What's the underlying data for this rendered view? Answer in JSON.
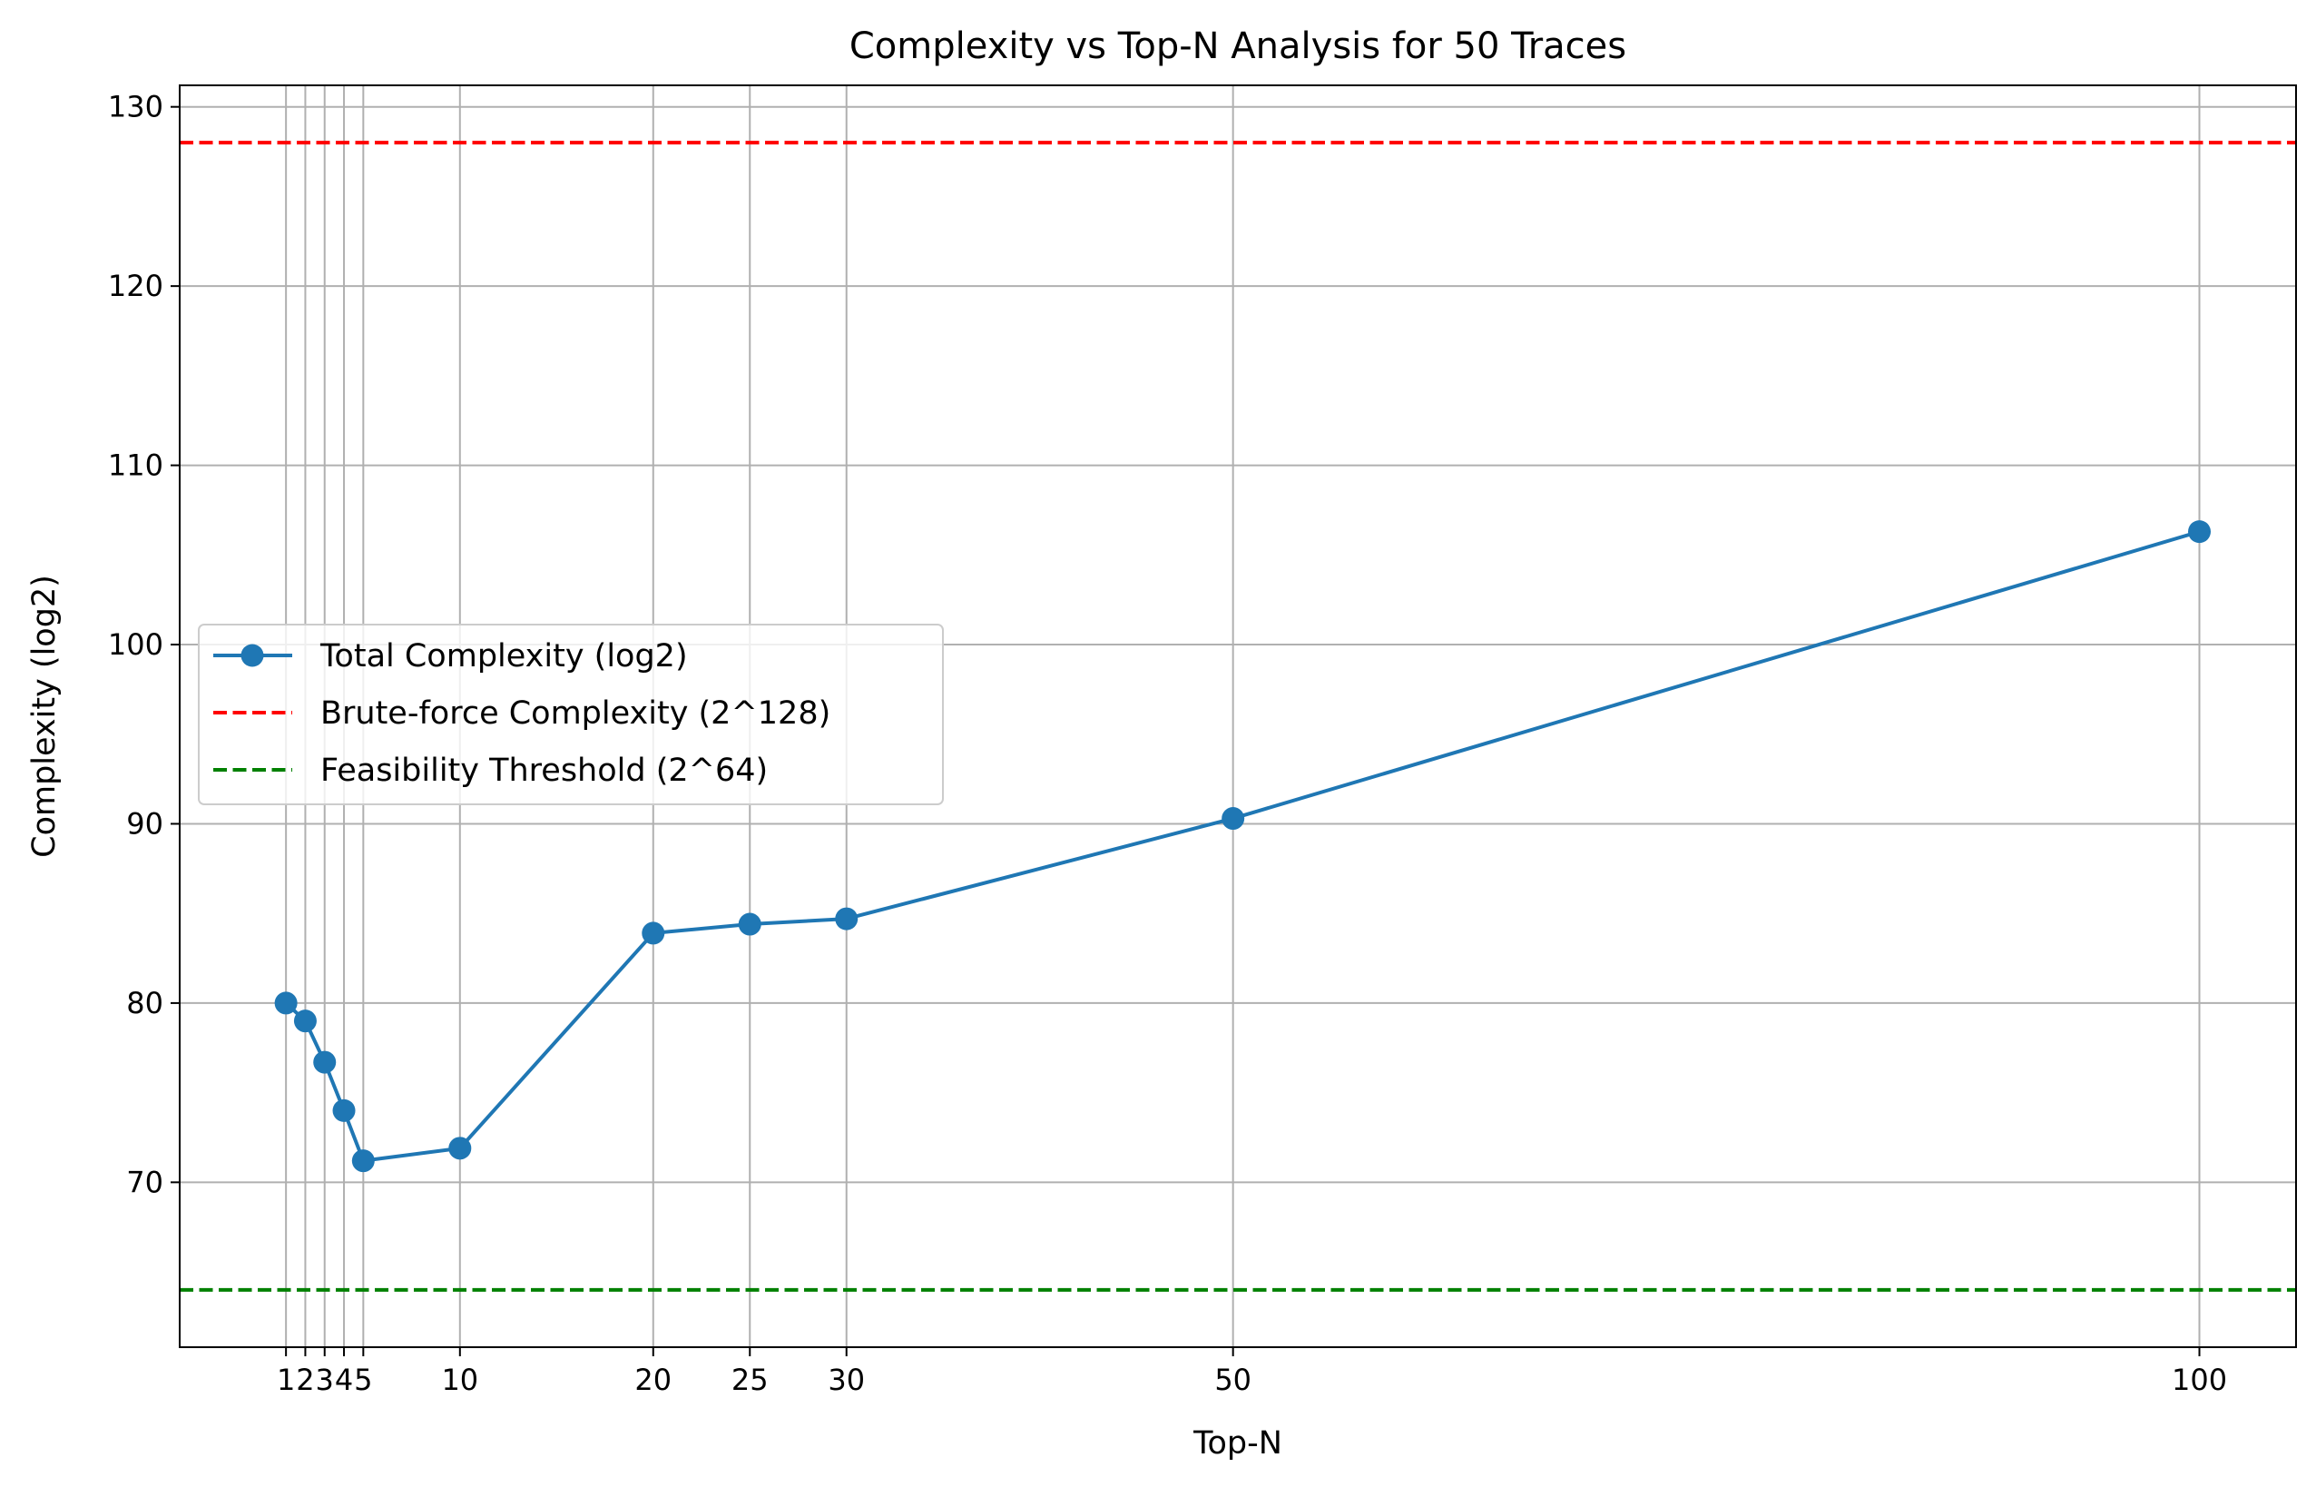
{
  "chart_data": {
    "type": "line",
    "title": "Complexity vs Top-N Analysis for 50 Traces",
    "xlabel": "Top-N",
    "ylabel": "Complexity (log2)",
    "x": [
      1,
      2,
      3,
      4,
      5,
      10,
      20,
      25,
      30,
      50,
      100
    ],
    "x_ticks": [
      "1",
      "2",
      "3",
      "4",
      "5",
      "10",
      "20",
      "25",
      "30",
      "50",
      "100"
    ],
    "xlim": [
      -4.5,
      105
    ],
    "ylim": [
      60.8,
      131.2
    ],
    "y_ticks": [
      "70",
      "80",
      "90",
      "100",
      "110",
      "120",
      "130"
    ],
    "grid": true,
    "legend_position": "center-left",
    "series": [
      {
        "name": "Total Complexity (log2)",
        "values": [
          80.0,
          79.0,
          76.7,
          74.0,
          71.2,
          71.9,
          83.9,
          84.4,
          84.7,
          90.3,
          106.3
        ],
        "color": "#1f77b4",
        "marker": "circle"
      }
    ],
    "reference_lines": [
      {
        "name": "Brute-force Complexity (2^128)",
        "y": 128,
        "color": "#ff0000",
        "style": "dashed"
      },
      {
        "name": "Feasibility Threshold (2^64)",
        "y": 64,
        "color": "#008000",
        "style": "dashed"
      }
    ]
  }
}
